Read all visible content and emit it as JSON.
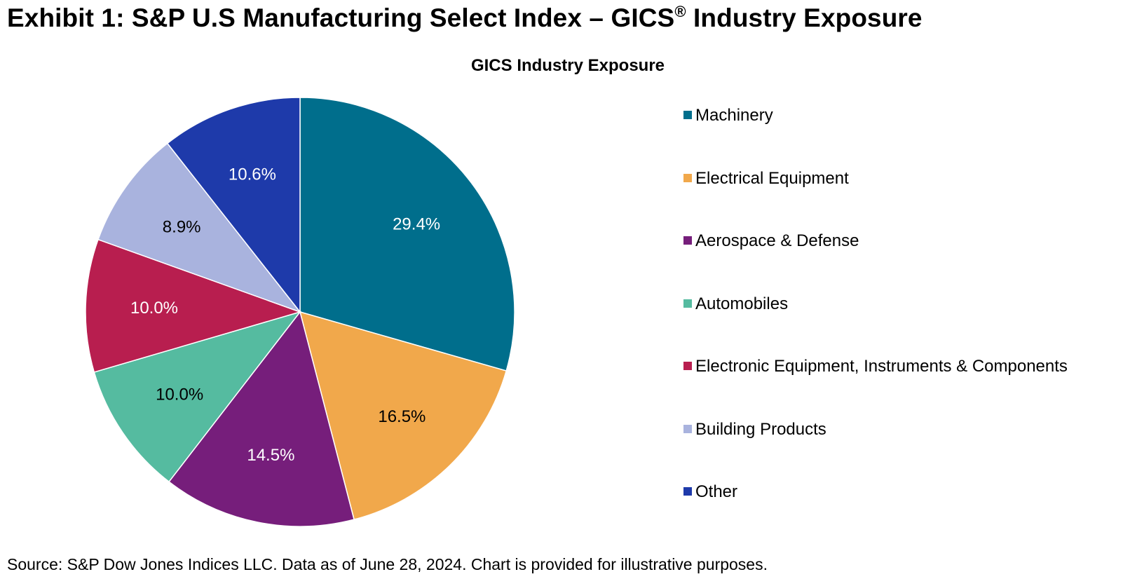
{
  "exhibit": {
    "title_main": "Exhibit 1: S&P U.S Manufacturing Select Index – GICS",
    "title_reg": "®",
    "title_tail": " Industry Exposure"
  },
  "source": "Source: S&P Dow Jones Indices LLC. Data as of June 28, 2024. Chart is provided for illustrative purposes.",
  "chart_data": {
    "type": "pie",
    "title": "GICS Industry Exposure",
    "legend_position": "right",
    "slices": [
      {
        "label": "Machinery",
        "value": 29.4,
        "display": "29.4%",
        "color": "#006E8C",
        "label_color": "#ffffff"
      },
      {
        "label": "Electrical Equipment",
        "value": 16.5,
        "display": "16.5%",
        "color": "#F1A84B",
        "label_color": "#000000"
      },
      {
        "label": "Aerospace & Defense",
        "value": 14.5,
        "display": "14.5%",
        "color": "#761E7B",
        "label_color": "#ffffff"
      },
      {
        "label": "Automobiles",
        "value": 10.0,
        "display": "10.0%",
        "color": "#55BBA0",
        "label_color": "#000000"
      },
      {
        "label": "Electronic Equipment, Instruments & Components",
        "value": 10.0,
        "display": "10.0%",
        "color": "#B81E4F",
        "label_color": "#ffffff"
      },
      {
        "label": "Building Products",
        "value": 8.9,
        "display": "8.9%",
        "color": "#A9B3DE",
        "label_color": "#000000"
      },
      {
        "label": "Other",
        "value": 10.6,
        "display": "10.6%",
        "color": "#1E3AAA",
        "label_color": "#ffffff"
      }
    ]
  }
}
